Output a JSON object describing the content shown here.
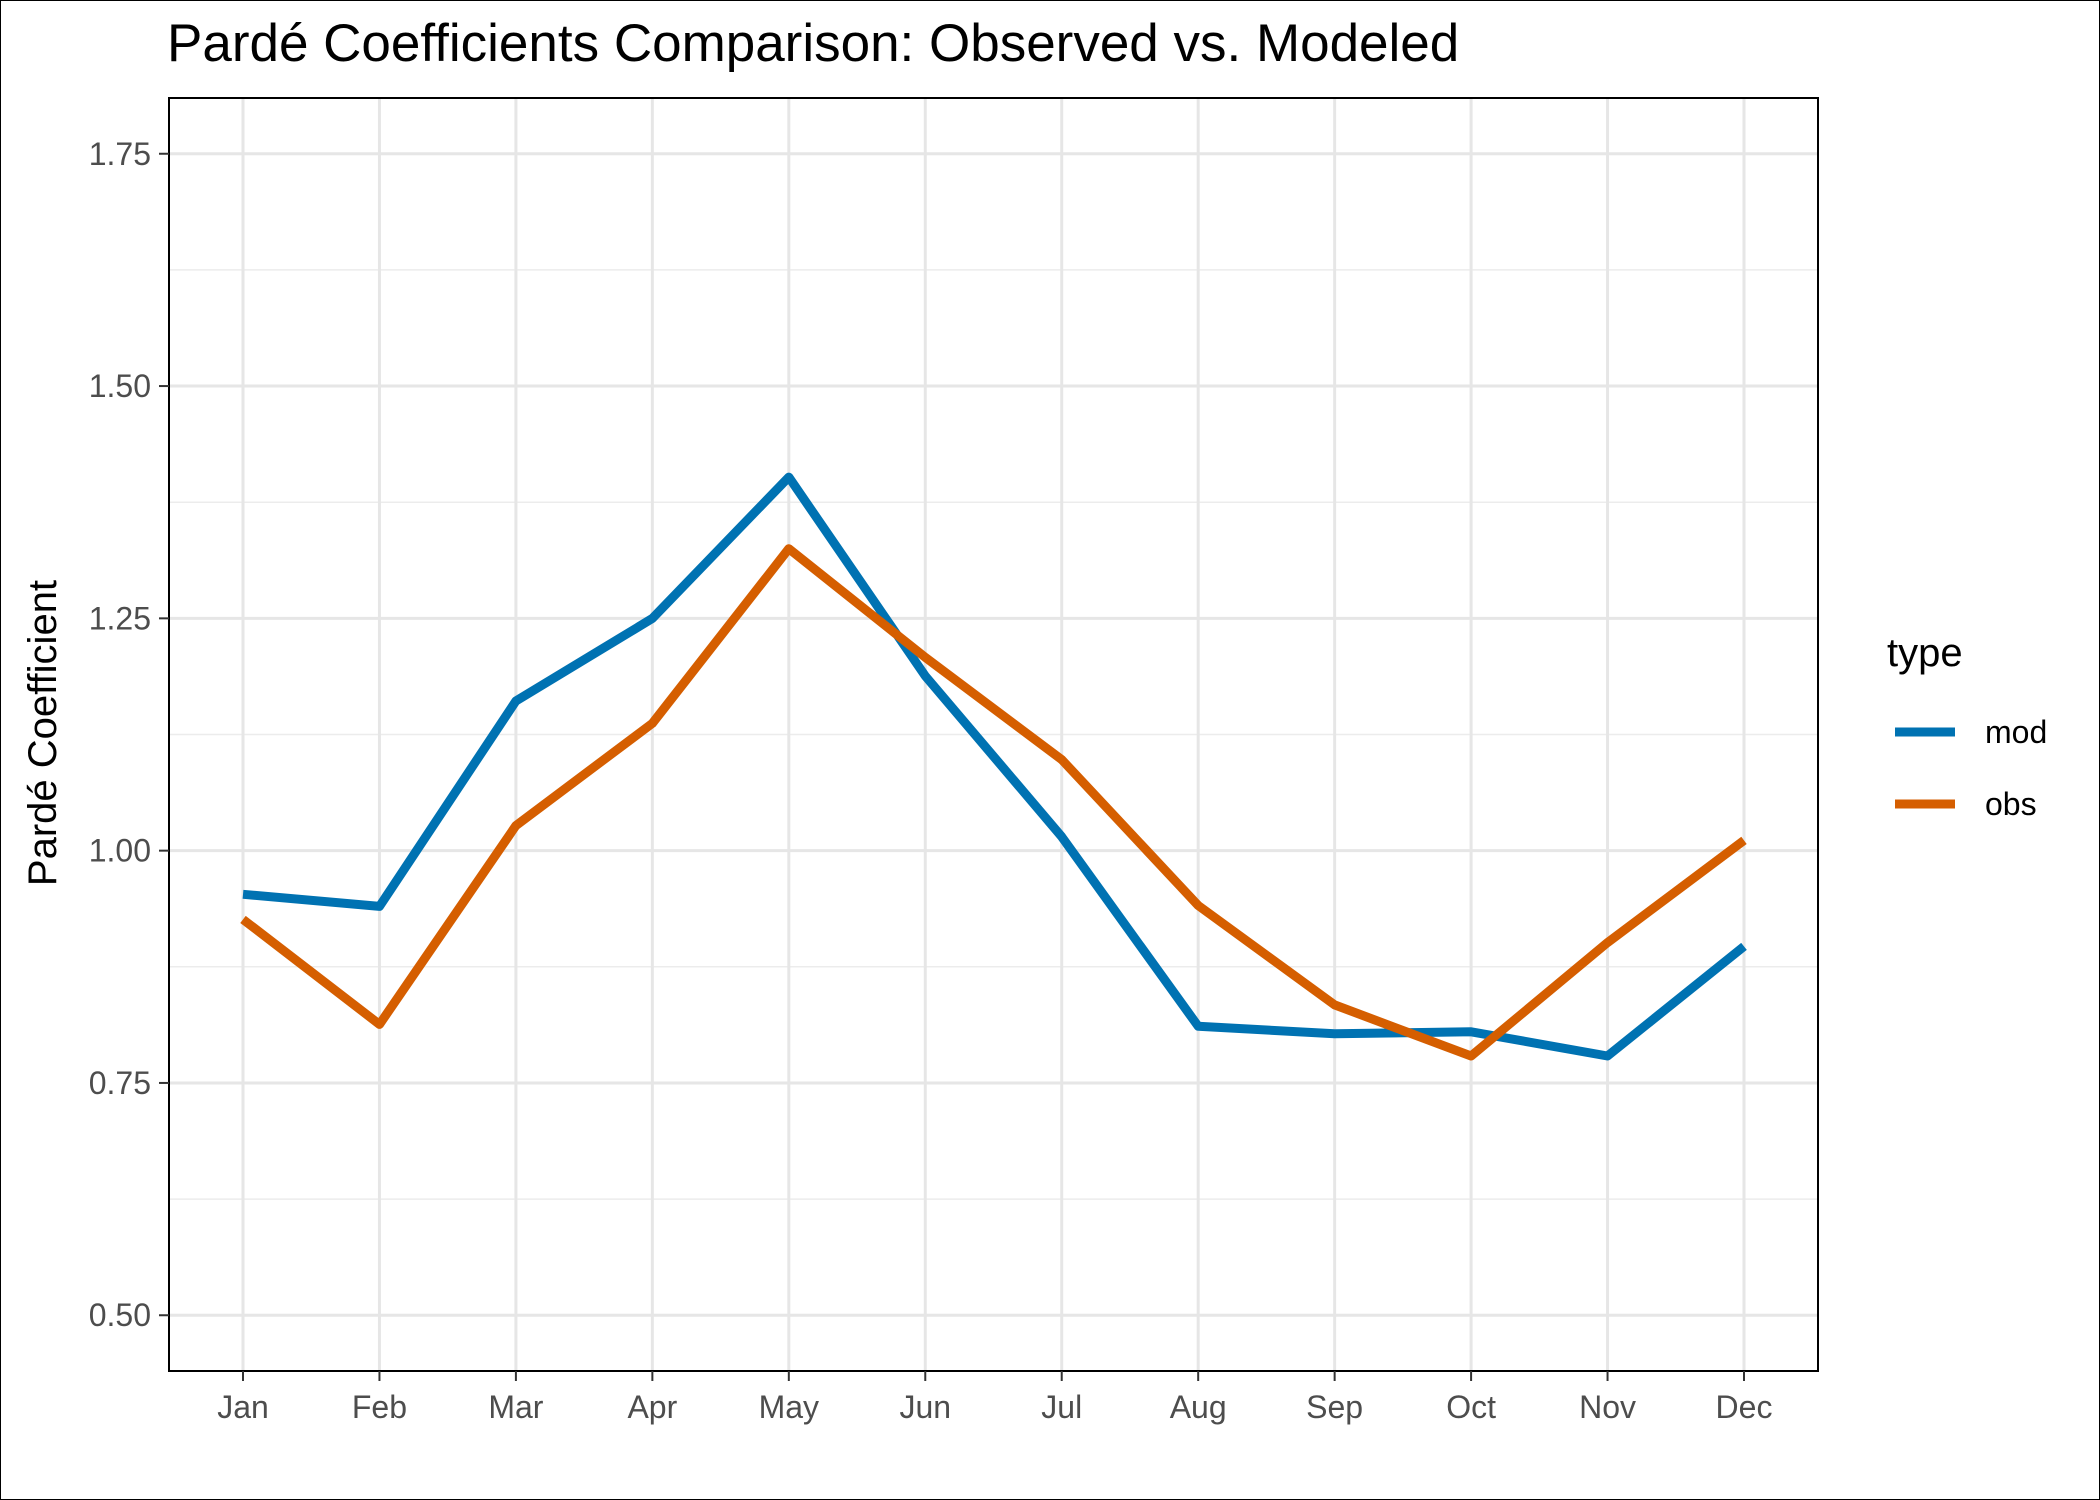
{
  "chart_data": {
    "type": "line",
    "title": "Pardé Coefficients Comparison: Observed vs. Modeled",
    "xlabel": "",
    "ylabel": "Pardé Coefficient",
    "categories": [
      "Jan",
      "Feb",
      "Mar",
      "Apr",
      "May",
      "Jun",
      "Jul",
      "Aug",
      "Sep",
      "Oct",
      "Nov",
      "Dec"
    ],
    "y_ticks": [
      0.5,
      0.75,
      1.0,
      1.25,
      1.5,
      1.75
    ],
    "y_tick_labels": [
      "0.50",
      "0.75",
      "1.00",
      "1.25",
      "1.50",
      "1.75"
    ],
    "ylim": [
      0.44,
      1.81
    ],
    "grid": true,
    "legend": {
      "title": "type",
      "position": "right"
    },
    "series": [
      {
        "name": "mod",
        "color": "#0072B2",
        "values": [
          0.953,
          0.94,
          1.161,
          1.25,
          1.402,
          1.188,
          1.015,
          0.811,
          0.803,
          0.805,
          0.779,
          0.897
        ]
      },
      {
        "name": "obs",
        "color": "#D55E00",
        "values": [
          0.926,
          0.813,
          1.027,
          1.137,
          1.325,
          1.208,
          1.098,
          0.941,
          0.834,
          0.779,
          0.901,
          1.011
        ]
      }
    ]
  }
}
